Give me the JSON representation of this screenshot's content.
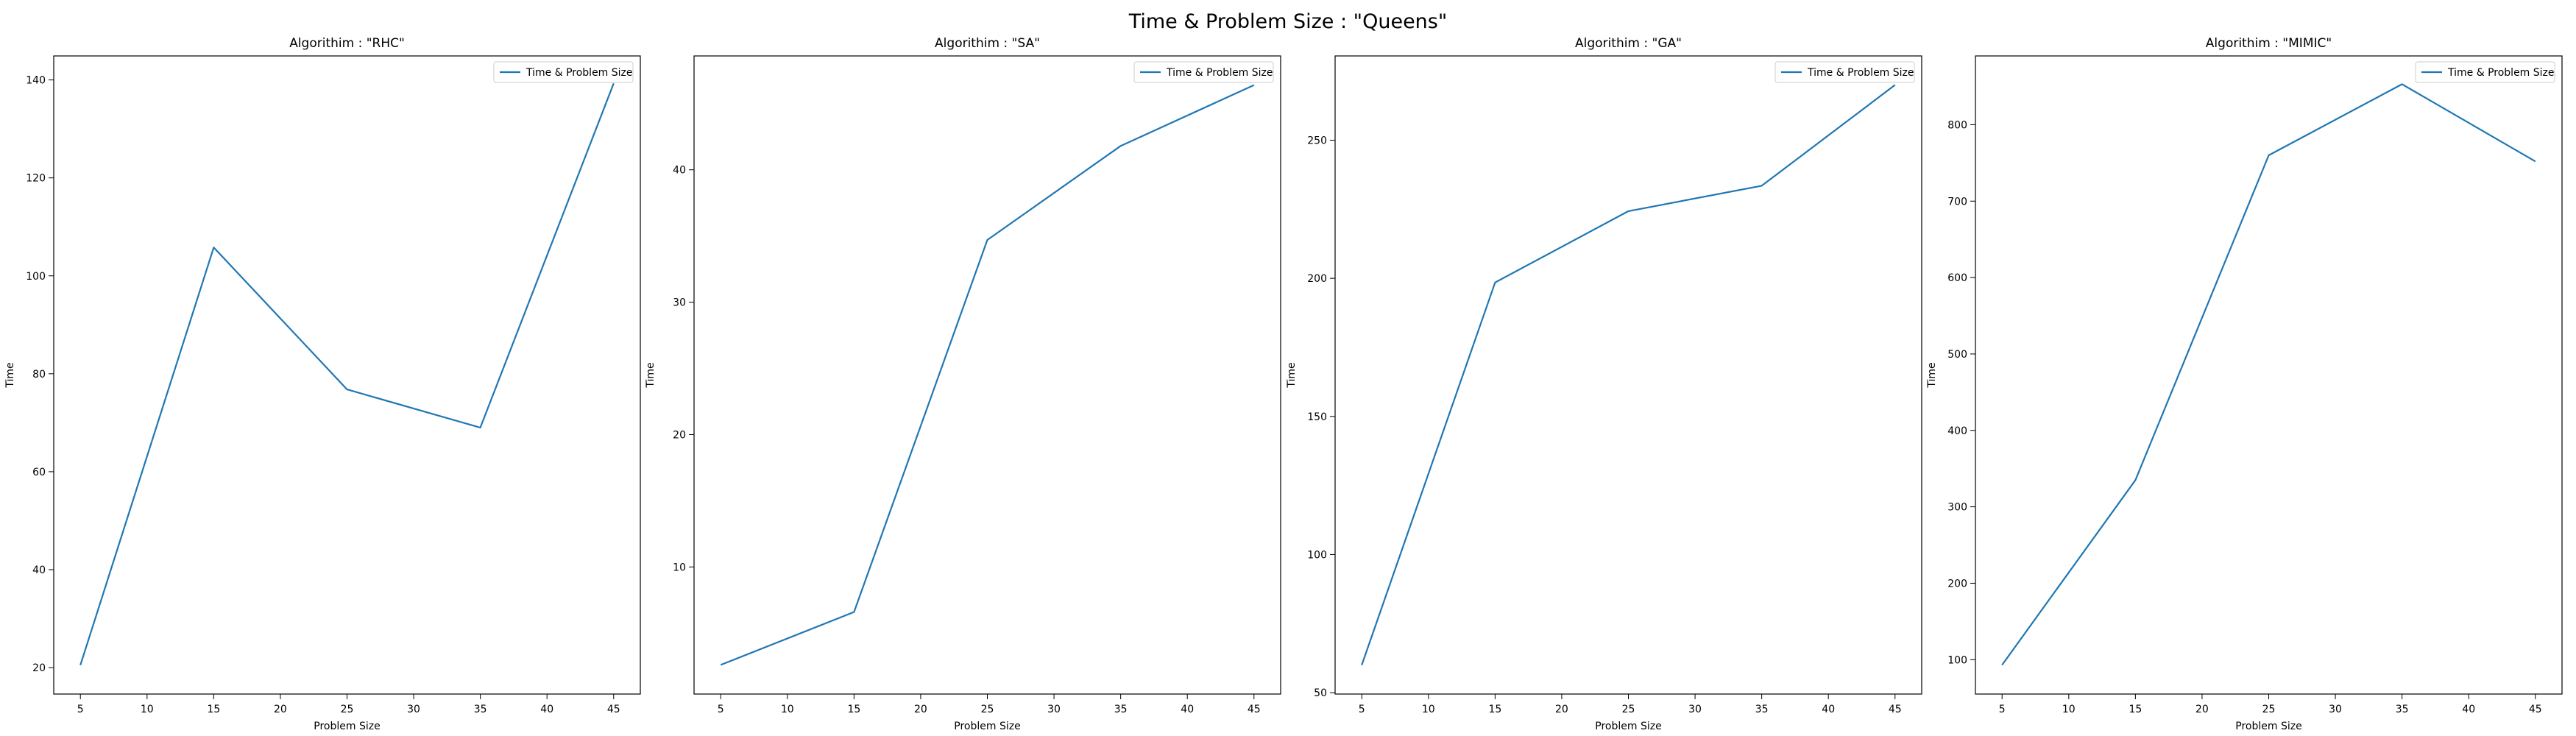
{
  "figure": {
    "suptitle": "Time & Problem Size : \"Queens\""
  },
  "colors": {
    "line": "#1f77b4",
    "axes": "#000000",
    "legend_border": "#cccccc",
    "background": "#ffffff"
  },
  "chart_data": [
    {
      "type": "line",
      "title": "Algorithim : \"RHC\"",
      "xlabel": "Problem Size",
      "ylabel": "Time",
      "legend_position": "top-right",
      "grid": false,
      "xlim": [
        3,
        47
      ],
      "ylim": [
        14.6,
        144.9
      ],
      "xticks": [
        5,
        10,
        15,
        20,
        25,
        30,
        35,
        40,
        45
      ],
      "yticks": [
        20,
        40,
        60,
        80,
        100,
        120,
        140
      ],
      "series": [
        {
          "name": "Time & Problem Size",
          "x": [
            5,
            15,
            25,
            35,
            45
          ],
          "y": [
            20.5,
            105.8,
            76.8,
            69.0,
            139.3
          ]
        }
      ]
    },
    {
      "type": "line",
      "title": "Algorithim : \"SA\"",
      "xlabel": "Problem Size",
      "ylabel": "Time",
      "legend_position": "top-right",
      "grid": false,
      "xlim": [
        3,
        47
      ],
      "ylim": [
        0.4,
        48.6
      ],
      "xticks": [
        5,
        10,
        15,
        20,
        25,
        30,
        35,
        40,
        45
      ],
      "yticks": [
        10,
        20,
        30,
        40
      ],
      "series": [
        {
          "name": "Time & Problem Size",
          "x": [
            5,
            15,
            25,
            35,
            45
          ],
          "y": [
            2.6,
            6.6,
            34.7,
            41.8,
            46.4
          ]
        }
      ]
    },
    {
      "type": "line",
      "title": "Algorithim : \"GA\"",
      "xlabel": "Problem Size",
      "ylabel": "Time",
      "legend_position": "top-right",
      "grid": false,
      "xlim": [
        3,
        47
      ],
      "ylim": [
        49.5,
        280.5
      ],
      "xticks": [
        5,
        10,
        15,
        20,
        25,
        30,
        35,
        40,
        45
      ],
      "yticks": [
        50,
        100,
        150,
        200,
        250
      ],
      "series": [
        {
          "name": "Time & Problem Size",
          "x": [
            5,
            15,
            25,
            35,
            45
          ],
          "y": [
            60.0,
            198.5,
            224.3,
            233.5,
            270.0
          ]
        }
      ]
    },
    {
      "type": "line",
      "title": "Algorithim : \"MIMIC\"",
      "xlabel": "Problem Size",
      "ylabel": "Time",
      "legend_position": "top-right",
      "grid": false,
      "xlim": [
        3,
        47
      ],
      "ylim": [
        55,
        890
      ],
      "xticks": [
        5,
        10,
        15,
        20,
        25,
        30,
        35,
        40,
        45
      ],
      "yticks": [
        100,
        200,
        300,
        400,
        500,
        600,
        700,
        800
      ],
      "series": [
        {
          "name": "Time & Problem Size",
          "x": [
            5,
            15,
            25,
            35,
            45
          ],
          "y": [
            93,
            335,
            760,
            853,
            752
          ]
        }
      ]
    }
  ]
}
